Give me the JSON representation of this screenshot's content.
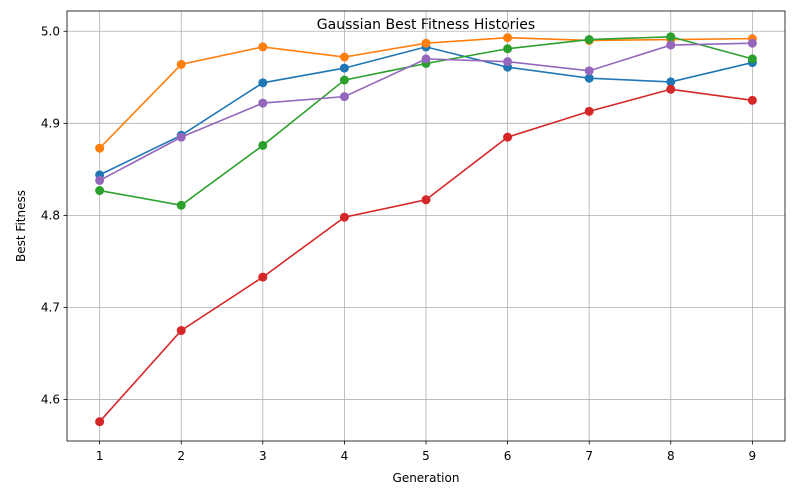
{
  "chart_data": {
    "type": "line",
    "title": "Gaussian Best Fitness Histories",
    "xlabel": "Generation",
    "ylabel": "Best Fitness",
    "x": [
      1,
      2,
      3,
      4,
      5,
      6,
      7,
      8,
      9
    ],
    "xlim": [
      0.6,
      9.4
    ],
    "ylim": [
      4.555,
      5.022
    ],
    "xticks": [
      "1",
      "2",
      "3",
      "4",
      "5",
      "6",
      "7",
      "8",
      "9"
    ],
    "yticks": [
      4.6,
      4.7,
      4.8,
      4.9,
      5.0
    ],
    "ytick_labels": [
      "4.6",
      "4.7",
      "4.8",
      "4.9",
      "5.0"
    ],
    "grid": true,
    "series": [
      {
        "color": "#1f77b4",
        "values": [
          4.844,
          4.887,
          4.944,
          4.96,
          4.983,
          4.961,
          4.949,
          4.945,
          4.966
        ]
      },
      {
        "color": "#ff7f0e",
        "values": [
          4.873,
          4.964,
          4.983,
          4.972,
          4.987,
          4.993,
          4.99,
          4.991,
          4.992
        ]
      },
      {
        "color": "#2ca02c",
        "values": [
          4.827,
          4.811,
          4.876,
          4.947,
          4.965,
          4.981,
          4.991,
          4.994,
          4.97
        ]
      },
      {
        "color": "#d62728",
        "values": [
          4.576,
          4.675,
          4.733,
          4.798,
          4.817,
          4.885,
          4.913,
          4.937,
          4.925
        ]
      },
      {
        "color": "#9467bd",
        "values": [
          4.838,
          4.885,
          4.922,
          4.929,
          4.97,
          4.967,
          4.957,
          4.985,
          4.987
        ]
      }
    ]
  }
}
